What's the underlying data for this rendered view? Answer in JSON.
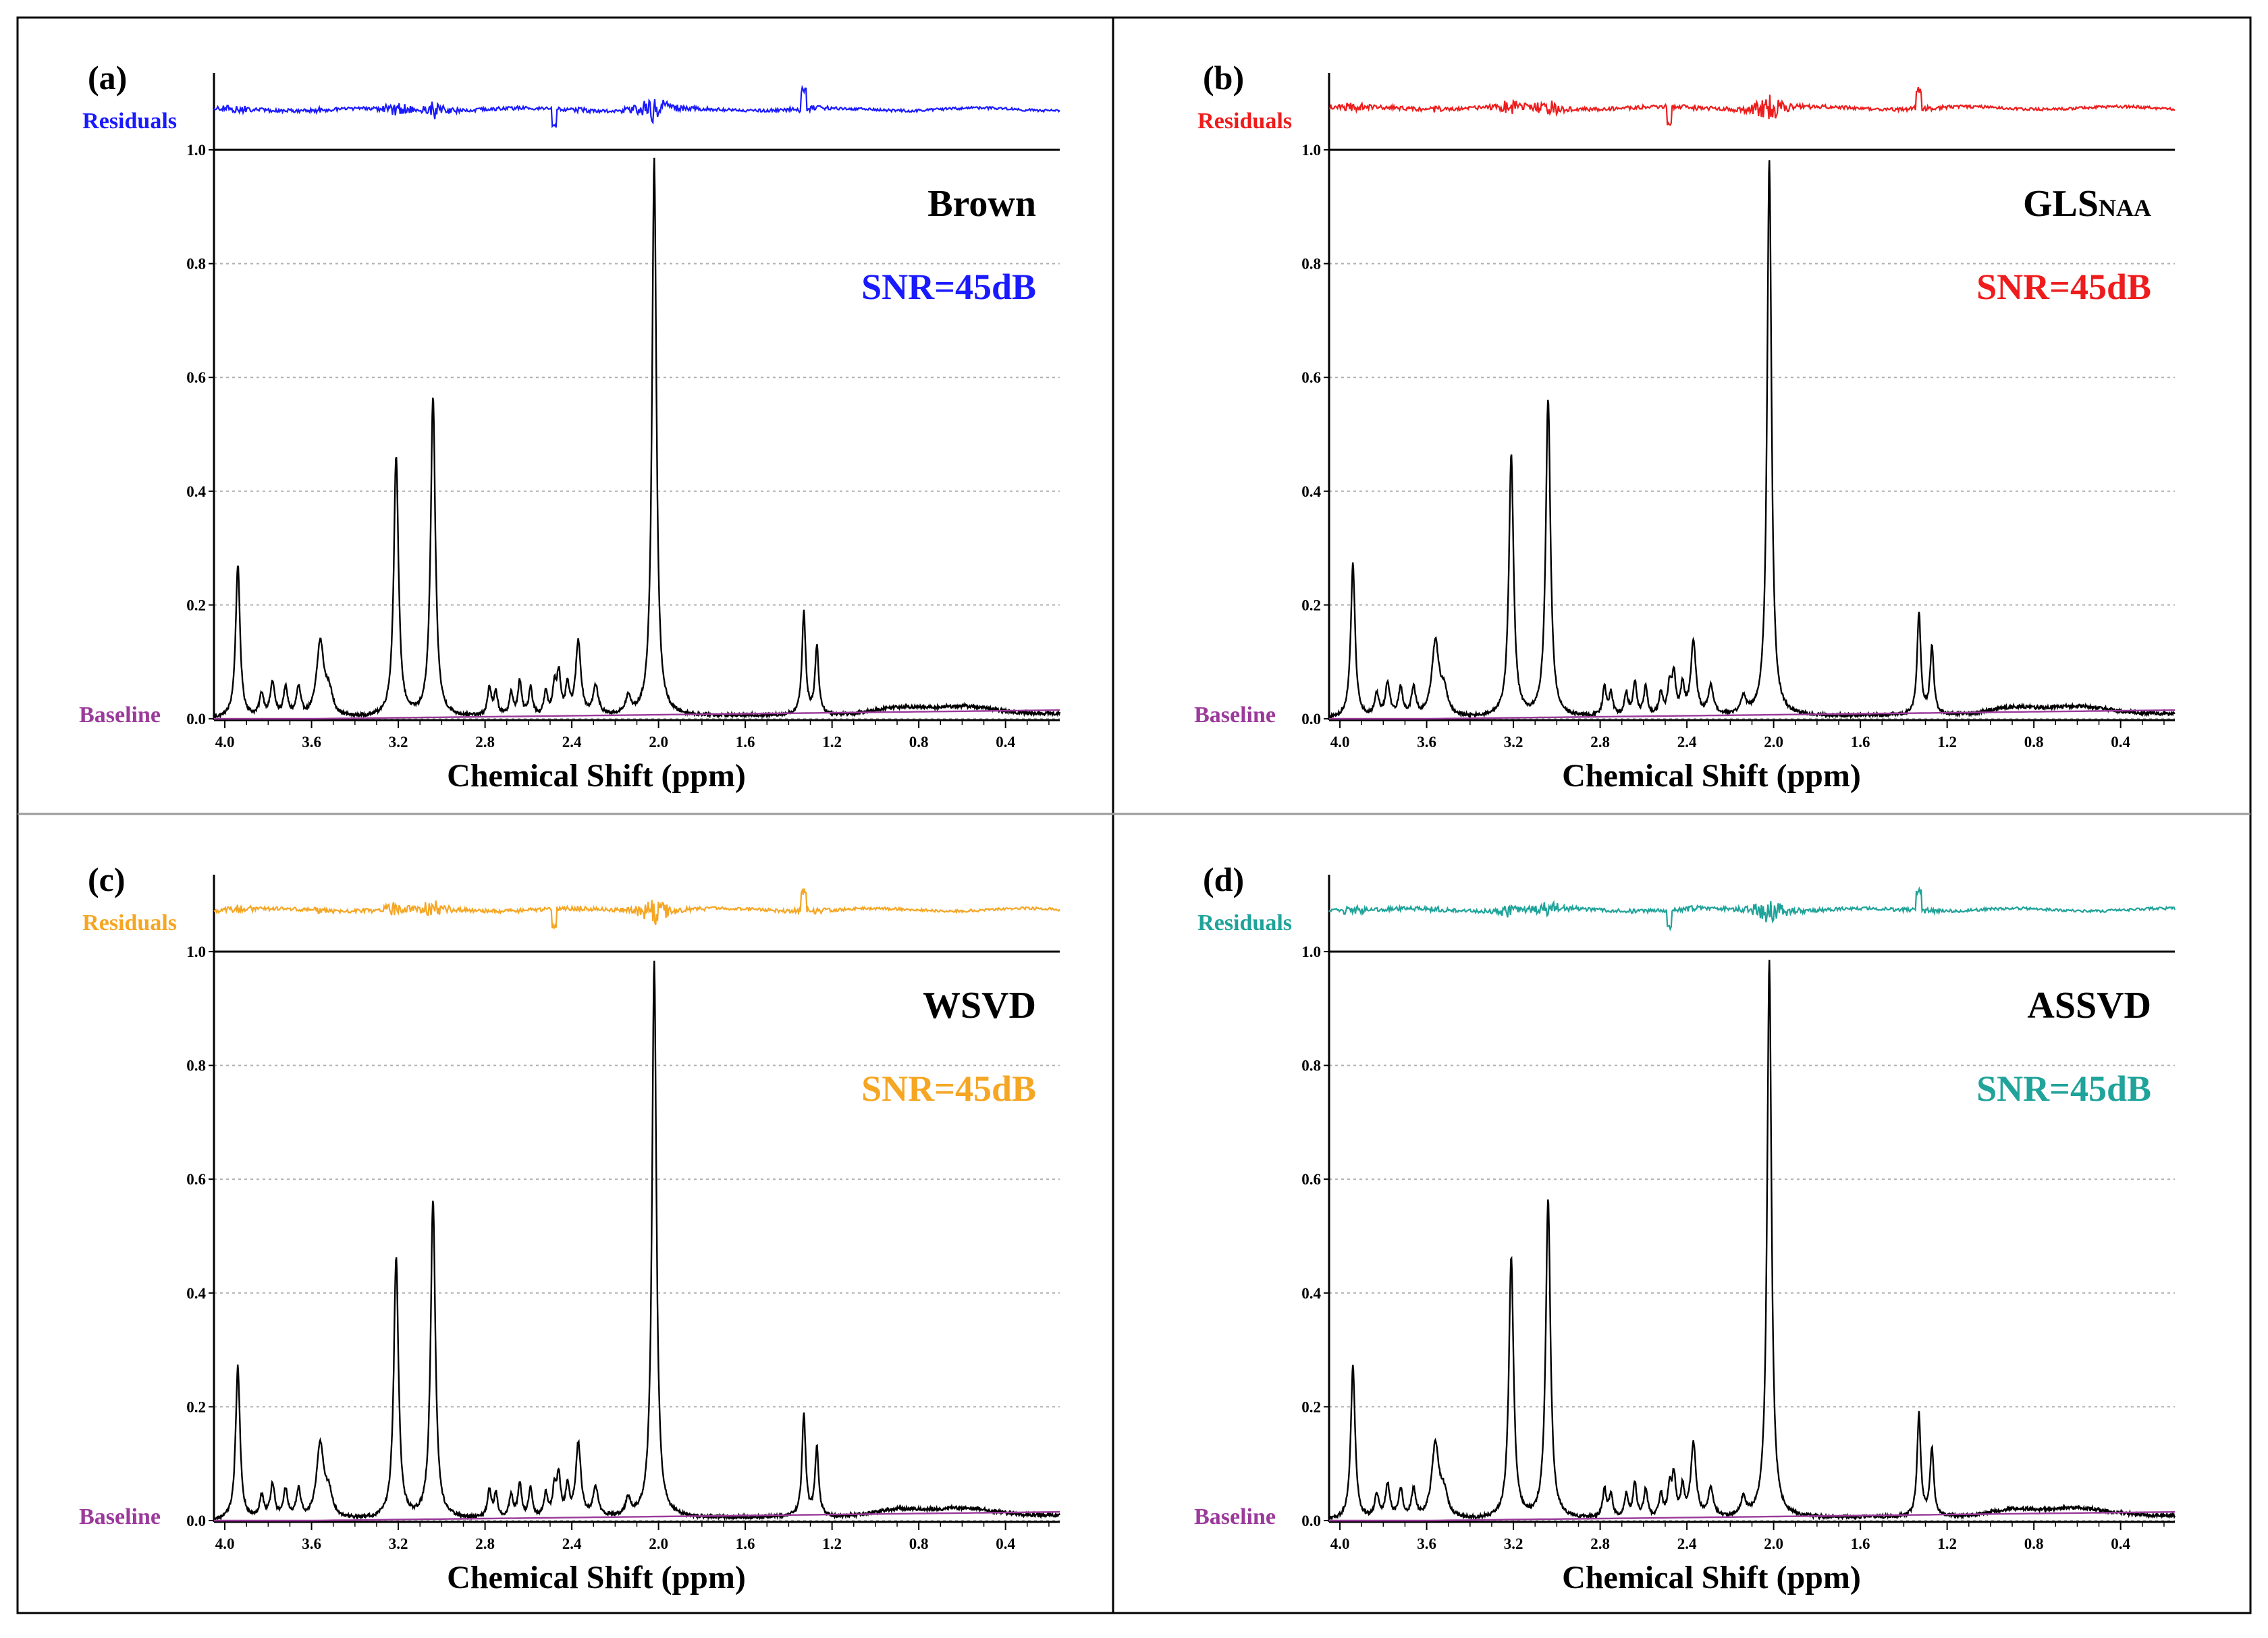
{
  "figure": {
    "panels": [
      {
        "letter": "(a)",
        "method": "Brown",
        "method_sub": "",
        "snr": "SNR=45dB",
        "residuals_label": "Residuals",
        "baseline_label": "Baseline",
        "xlabel": "Chemical Shift (ppm)",
        "residual_color": "#1a1aff",
        "snr_color": "#1a1aff",
        "baseline_color": "#9b3a9b",
        "spectrum_color": "#000000"
      },
      {
        "letter": "(b)",
        "method": "GLS",
        "method_sub": "NAA",
        "snr": "SNR=45dB",
        "residuals_label": "Residuals",
        "baseline_label": "Baseline",
        "xlabel": "Chemical Shift (ppm)",
        "residual_color": "#ee1c1c",
        "snr_color": "#ee1c1c",
        "baseline_color": "#9b3a9b",
        "spectrum_color": "#000000"
      },
      {
        "letter": "(c)",
        "method": "WSVD",
        "method_sub": "",
        "snr": "SNR=45dB",
        "residuals_label": "Residuals",
        "baseline_label": "Baseline",
        "xlabel": "Chemical Shift (ppm)",
        "residual_color": "#f5a623",
        "snr_color": "#f5a623",
        "baseline_color": "#9b3a9b",
        "spectrum_color": "#000000"
      },
      {
        "letter": "(d)",
        "method": "ASSVD",
        "method_sub": "",
        "snr": "SNR=45dB",
        "residuals_label": "Residuals",
        "baseline_label": "Baseline",
        "xlabel": "Chemical Shift (ppm)",
        "residual_color": "#1fa39a",
        "snr_color": "#1fa39a",
        "baseline_color": "#9b3a9b",
        "spectrum_color": "#000000"
      }
    ]
  },
  "chart_data": {
    "type": "line",
    "title": "",
    "xlabel": "Chemical Shift (ppm)",
    "ylabel": "",
    "x_reversed": true,
    "xlim": [
      4.05,
      0.15
    ],
    "ylim": [
      0,
      1.0
    ],
    "grid": true,
    "x_ticks": [
      "4.0",
      "3.6",
      "3.2",
      "2.8",
      "2.4",
      "2.0",
      "1.6",
      "1.2",
      "0.8",
      "0.4"
    ],
    "y_ticks": [
      "0.0",
      "0.2",
      "0.4",
      "0.6",
      "0.8",
      "1.0"
    ],
    "peaks": [
      {
        "ppm": 3.94,
        "amp": 0.27,
        "width": 0.012
      },
      {
        "ppm": 3.83,
        "amp": 0.04,
        "width": 0.012
      },
      {
        "ppm": 3.78,
        "amp": 0.06,
        "width": 0.012
      },
      {
        "ppm": 3.72,
        "amp": 0.05,
        "width": 0.012
      },
      {
        "ppm": 3.66,
        "amp": 0.05,
        "width": 0.012
      },
      {
        "ppm": 3.56,
        "amp": 0.13,
        "width": 0.02
      },
      {
        "ppm": 3.52,
        "amp": 0.04,
        "width": 0.02
      },
      {
        "ppm": 3.21,
        "amp": 0.46,
        "width": 0.013
      },
      {
        "ppm": 3.04,
        "amp": 0.56,
        "width": 0.013
      },
      {
        "ppm": 2.78,
        "amp": 0.05,
        "width": 0.01
      },
      {
        "ppm": 2.75,
        "amp": 0.04,
        "width": 0.01
      },
      {
        "ppm": 2.68,
        "amp": 0.04,
        "width": 0.01
      },
      {
        "ppm": 2.64,
        "amp": 0.06,
        "width": 0.01
      },
      {
        "ppm": 2.59,
        "amp": 0.05,
        "width": 0.01
      },
      {
        "ppm": 2.52,
        "amp": 0.04,
        "width": 0.01
      },
      {
        "ppm": 2.48,
        "amp": 0.05,
        "width": 0.01
      },
      {
        "ppm": 2.46,
        "amp": 0.07,
        "width": 0.01
      },
      {
        "ppm": 2.42,
        "amp": 0.05,
        "width": 0.01
      },
      {
        "ppm": 2.37,
        "amp": 0.13,
        "width": 0.014
      },
      {
        "ppm": 2.29,
        "amp": 0.05,
        "width": 0.014
      },
      {
        "ppm": 2.14,
        "amp": 0.03,
        "width": 0.014
      },
      {
        "ppm": 2.02,
        "amp": 0.98,
        "width": 0.012
      },
      {
        "ppm": 1.33,
        "amp": 0.18,
        "width": 0.01
      },
      {
        "ppm": 1.27,
        "amp": 0.12,
        "width": 0.01
      }
    ],
    "broad_components": [
      {
        "ppm": 0.9,
        "amp": 0.012,
        "width": 0.15
      },
      {
        "ppm": 0.6,
        "amp": 0.014,
        "width": 0.2
      }
    ],
    "series": [
      {
        "name": "Spectrum",
        "description": "fitted spectrum, identical across panels"
      },
      {
        "name": "Residuals",
        "description": "fit residual trace above each panel"
      },
      {
        "name": "Baseline",
        "description": "estimated baseline, rises from ~0.0 at 4.0 ppm to ~0.015 at 0.2 ppm",
        "values_at_ticks": [
          0.0,
          0.0,
          0.002,
          0.004,
          0.006,
          0.008,
          0.011,
          0.013,
          0.014,
          0.015
        ]
      }
    ]
  }
}
